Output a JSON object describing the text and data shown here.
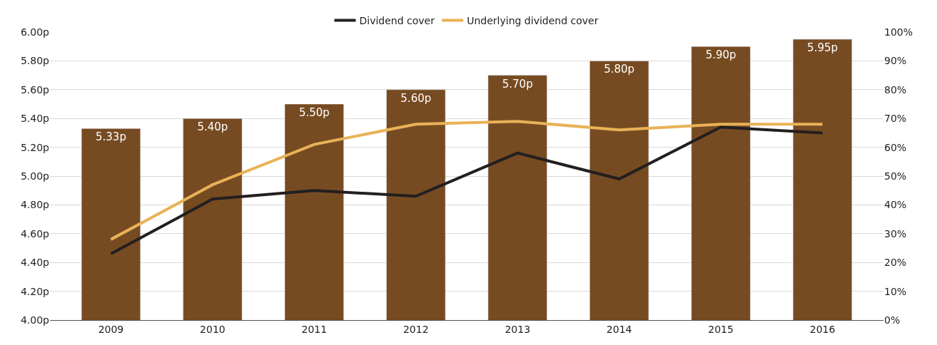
{
  "chart_data": {
    "type": "bar",
    "categories": [
      "2009",
      "2010",
      "2011",
      "2012",
      "2013",
      "2014",
      "2015",
      "2016"
    ],
    "series": [
      {
        "color": "#774b22",
        "values": [
          5.33,
          5.4,
          5.5,
          5.6,
          5.7,
          5.8,
          5.9,
          5.95
        ],
        "value_labels": [
          "5.33p",
          "5.40p",
          "5.50p",
          "5.60p",
          "5.70p",
          "5.80p",
          "5.90p",
          "5.95p"
        ]
      },
      {
        "type": "line",
        "name": "Dividend cover",
        "color": "#231f20",
        "axis": "y2",
        "values": [
          23,
          42,
          45,
          43,
          58,
          49,
          67,
          65
        ]
      },
      {
        "type": "line",
        "name": "Underlying dividend cover",
        "color": "#e9b256",
        "axis": "y2",
        "values": [
          28,
          47,
          61,
          68,
          69,
          66,
          68,
          68
        ]
      }
    ],
    "ylim": [
      4.0,
      6.0
    ],
    "yticks": [
      {
        "value": 4.0,
        "label": "4.00p"
      },
      {
        "value": 4.2,
        "label": "4.20p"
      },
      {
        "value": 4.4,
        "label": "4.40p"
      },
      {
        "value": 4.6,
        "label": "4.60p"
      },
      {
        "value": 4.8,
        "label": "4.80p"
      },
      {
        "value": 5.0,
        "label": "5.00p"
      },
      {
        "value": 5.2,
        "label": "5.20p"
      },
      {
        "value": 5.4,
        "label": "5.40p"
      },
      {
        "value": 5.6,
        "label": "5.60p"
      },
      {
        "value": 5.8,
        "label": "5.80p"
      },
      {
        "value": 6.0,
        "label": "6.00p"
      }
    ],
    "y2lim": [
      0,
      100
    ],
    "y2ticks": [
      {
        "value": 0,
        "label": "0%"
      },
      {
        "value": 10,
        "label": "10%"
      },
      {
        "value": 20,
        "label": "20%"
      },
      {
        "value": 30,
        "label": "30%"
      },
      {
        "value": 40,
        "label": "40%"
      },
      {
        "value": 50,
        "label": "50%"
      },
      {
        "value": 60,
        "label": "60%"
      },
      {
        "value": 70,
        "label": "70%"
      },
      {
        "value": 80,
        "label": "80%"
      },
      {
        "value": 90,
        "label": "90%"
      },
      {
        "value": 100,
        "label": "100%"
      }
    ],
    "grid": "y",
    "legend": "top",
    "marker": "none",
    "line_style": "solid"
  }
}
